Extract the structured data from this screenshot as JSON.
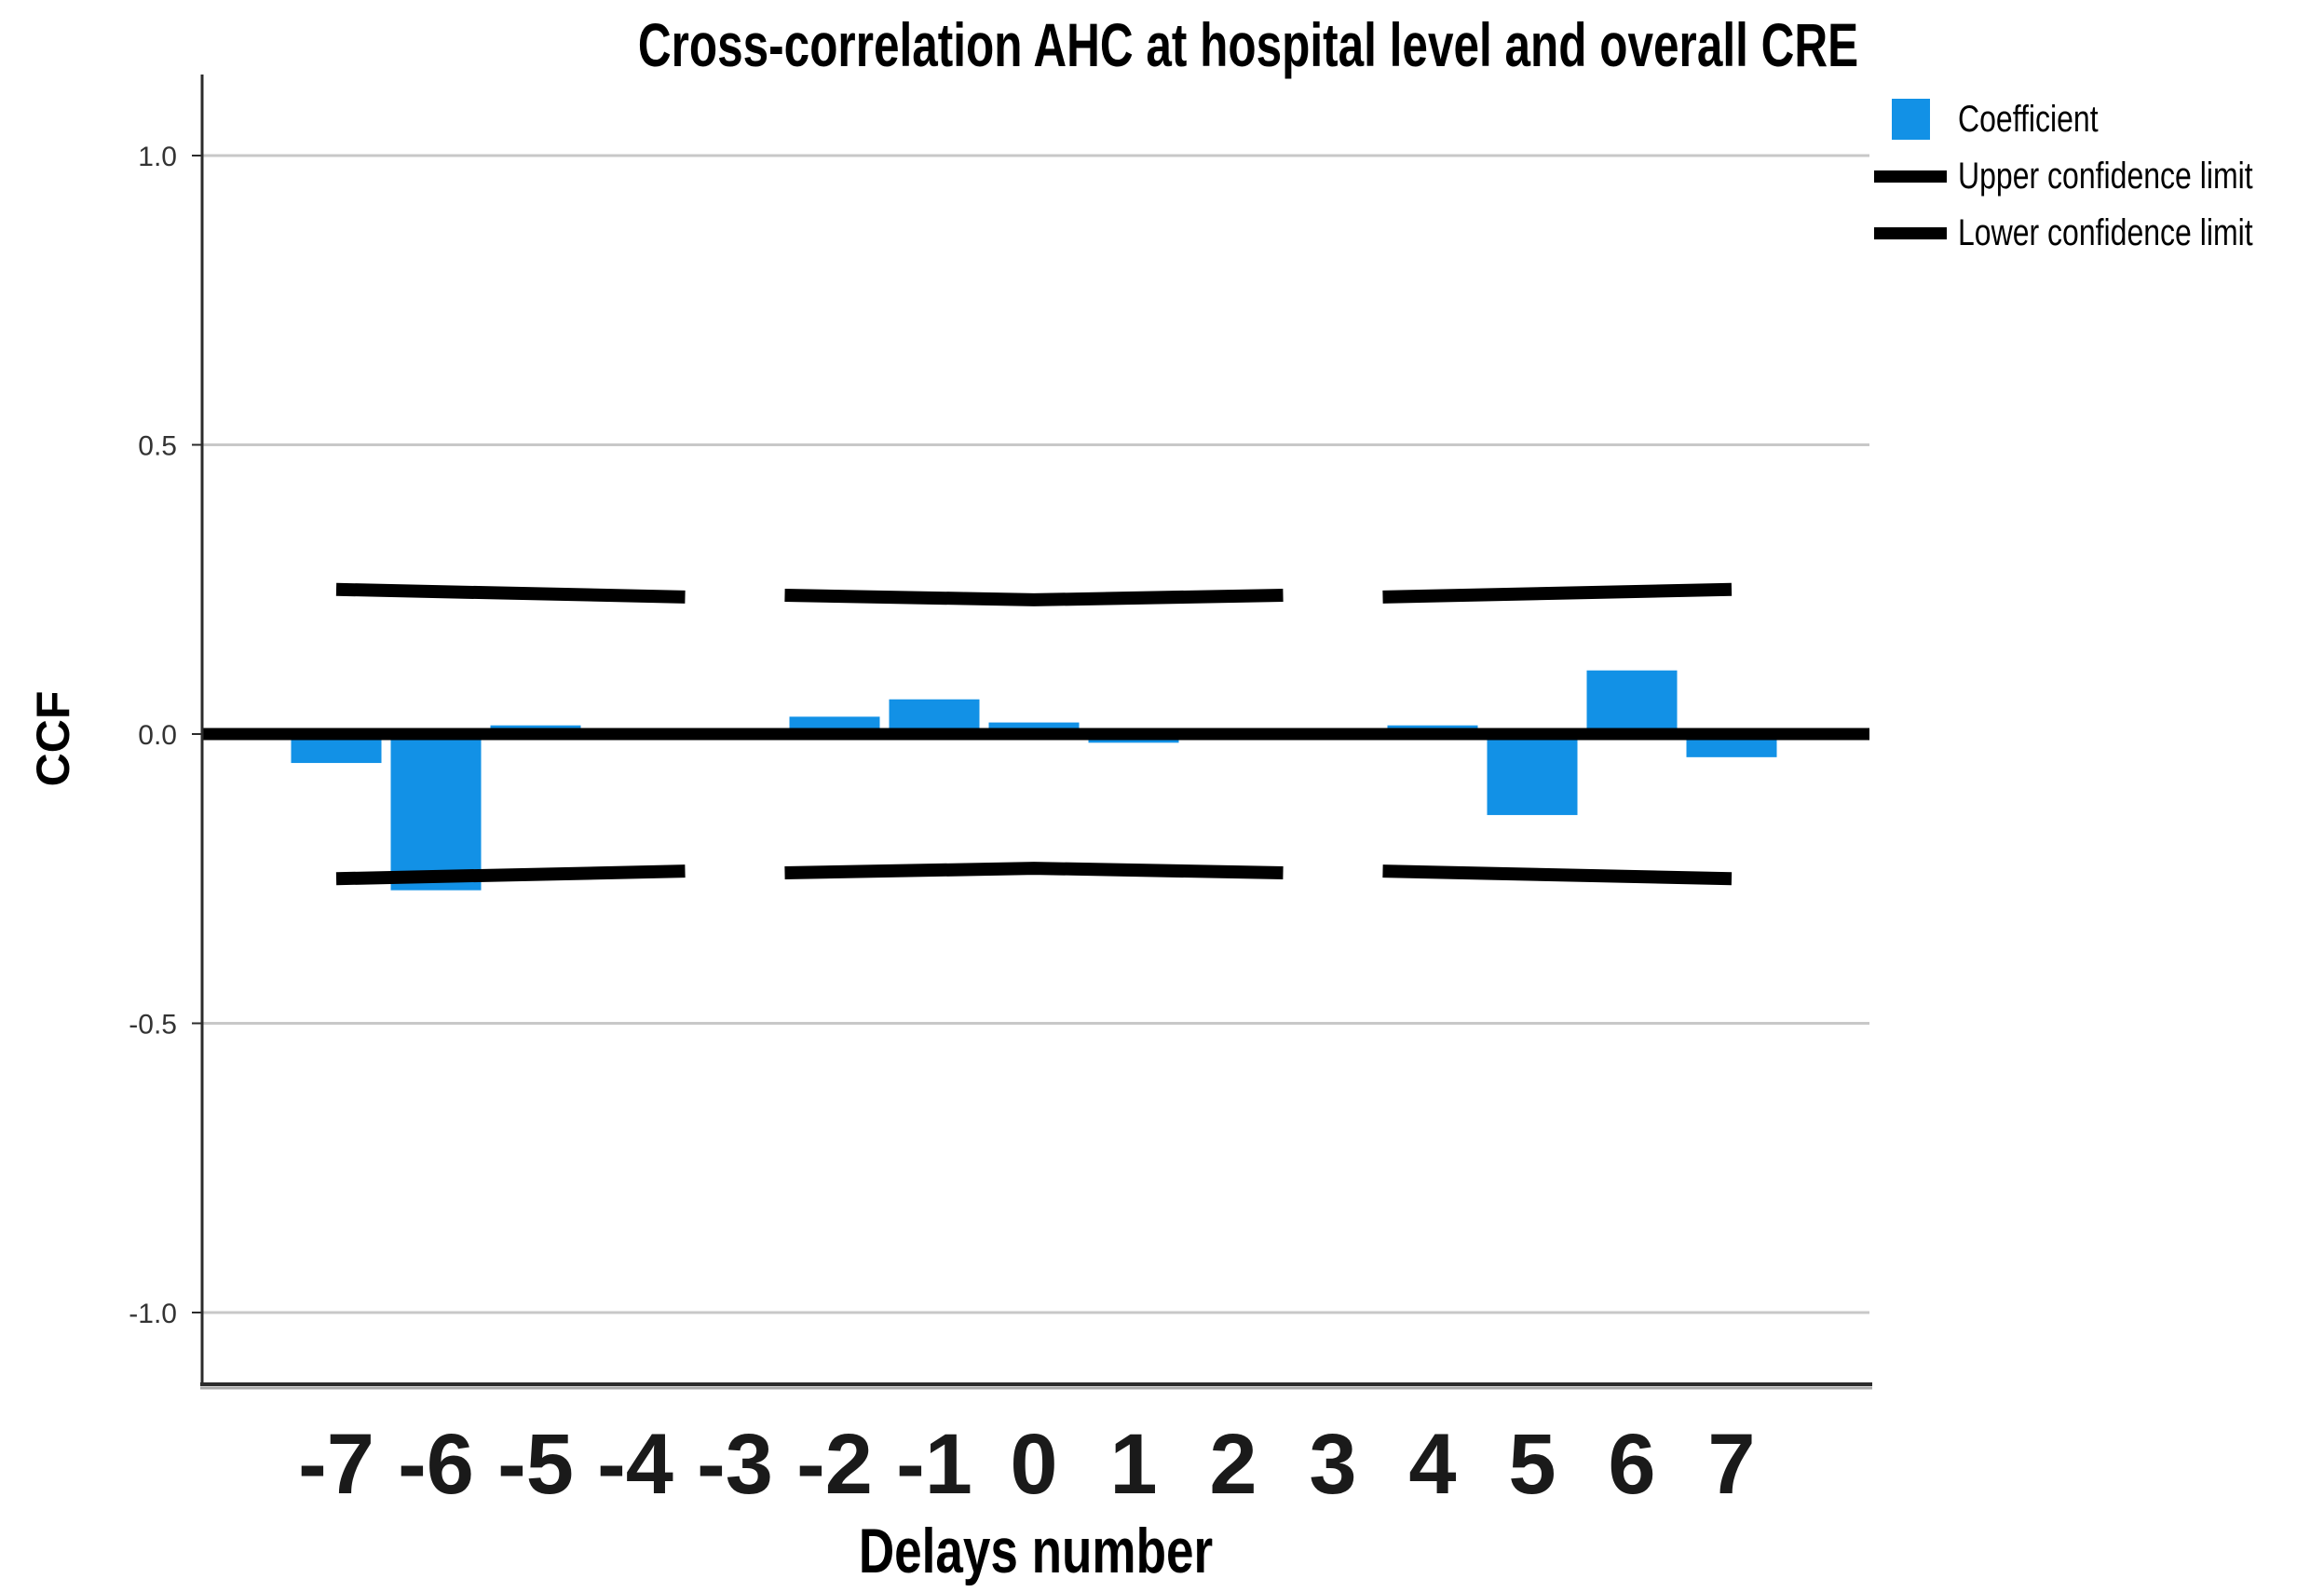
{
  "figure": {
    "title": "Cross-correlation AHC at hospital level and overall CRE"
  },
  "legend": {
    "items": [
      {
        "label": "Coefficient",
        "swatch": "square",
        "color": "#1291e6"
      },
      {
        "label": "Upper confidence limit",
        "swatch": "line",
        "color": "#000000"
      },
      {
        "label": "Lower confidence limit",
        "swatch": "line",
        "color": "#000000"
      }
    ]
  },
  "chart_data": {
    "type": "bar",
    "title": "Cross-correlation AHC at hospital level and overall CRE",
    "xlabel": "Delays number",
    "ylabel": "CCF",
    "x": [
      -7,
      -6,
      -5,
      -4,
      -3,
      -2,
      -1,
      0,
      1,
      2,
      3,
      4,
      5,
      6,
      7
    ],
    "series": [
      {
        "name": "Coefficient",
        "values": [
          -0.05,
          -0.27,
          0.015,
          0,
          0,
          0.03,
          0.06,
          0.02,
          -0.015,
          0,
          0,
          0.015,
          -0.14,
          0.11,
          -0.04
        ]
      }
    ],
    "yticks": [
      1.0,
      0.5,
      0.0,
      -0.5,
      -1.0
    ],
    "ylim": [
      -1.15,
      1.15
    ],
    "grid": true,
    "legend_position": "top-right",
    "bar_color": "#1291e6",
    "grid_color": "#c8c8c8",
    "axis_color": "#2b2b2b",
    "axis_shadow_color": "#a9a9a9",
    "tick_label_color": "#1a1a1a",
    "zero_line_value": 0.0,
    "zero_line_color": "#000000",
    "confidence_limits": {
      "upper": {
        "label": "Upper confidence limit",
        "color": "#000000",
        "segments": [
          {
            "points": [
              [
                -7,
                0.25
              ],
              [
                -3.5,
                0.237
              ]
            ]
          },
          {
            "points": [
              [
                -2.5,
                0.24
              ],
              [
                0,
                0.232
              ],
              [
                2.5,
                0.24
              ]
            ]
          },
          {
            "points": [
              [
                3.5,
                0.237
              ],
              [
                7,
                0.25
              ]
            ]
          }
        ]
      },
      "lower": {
        "label": "Lower confidence limit",
        "color": "#000000",
        "segments": [
          {
            "points": [
              [
                -7,
                -0.25
              ],
              [
                -3.5,
                -0.237
              ]
            ]
          },
          {
            "points": [
              [
                -2.5,
                -0.24
              ],
              [
                0,
                -0.232
              ],
              [
                2.5,
                -0.24
              ]
            ]
          },
          {
            "points": [
              [
                3.5,
                -0.237
              ],
              [
                7,
                -0.25
              ]
            ]
          }
        ]
      }
    }
  }
}
